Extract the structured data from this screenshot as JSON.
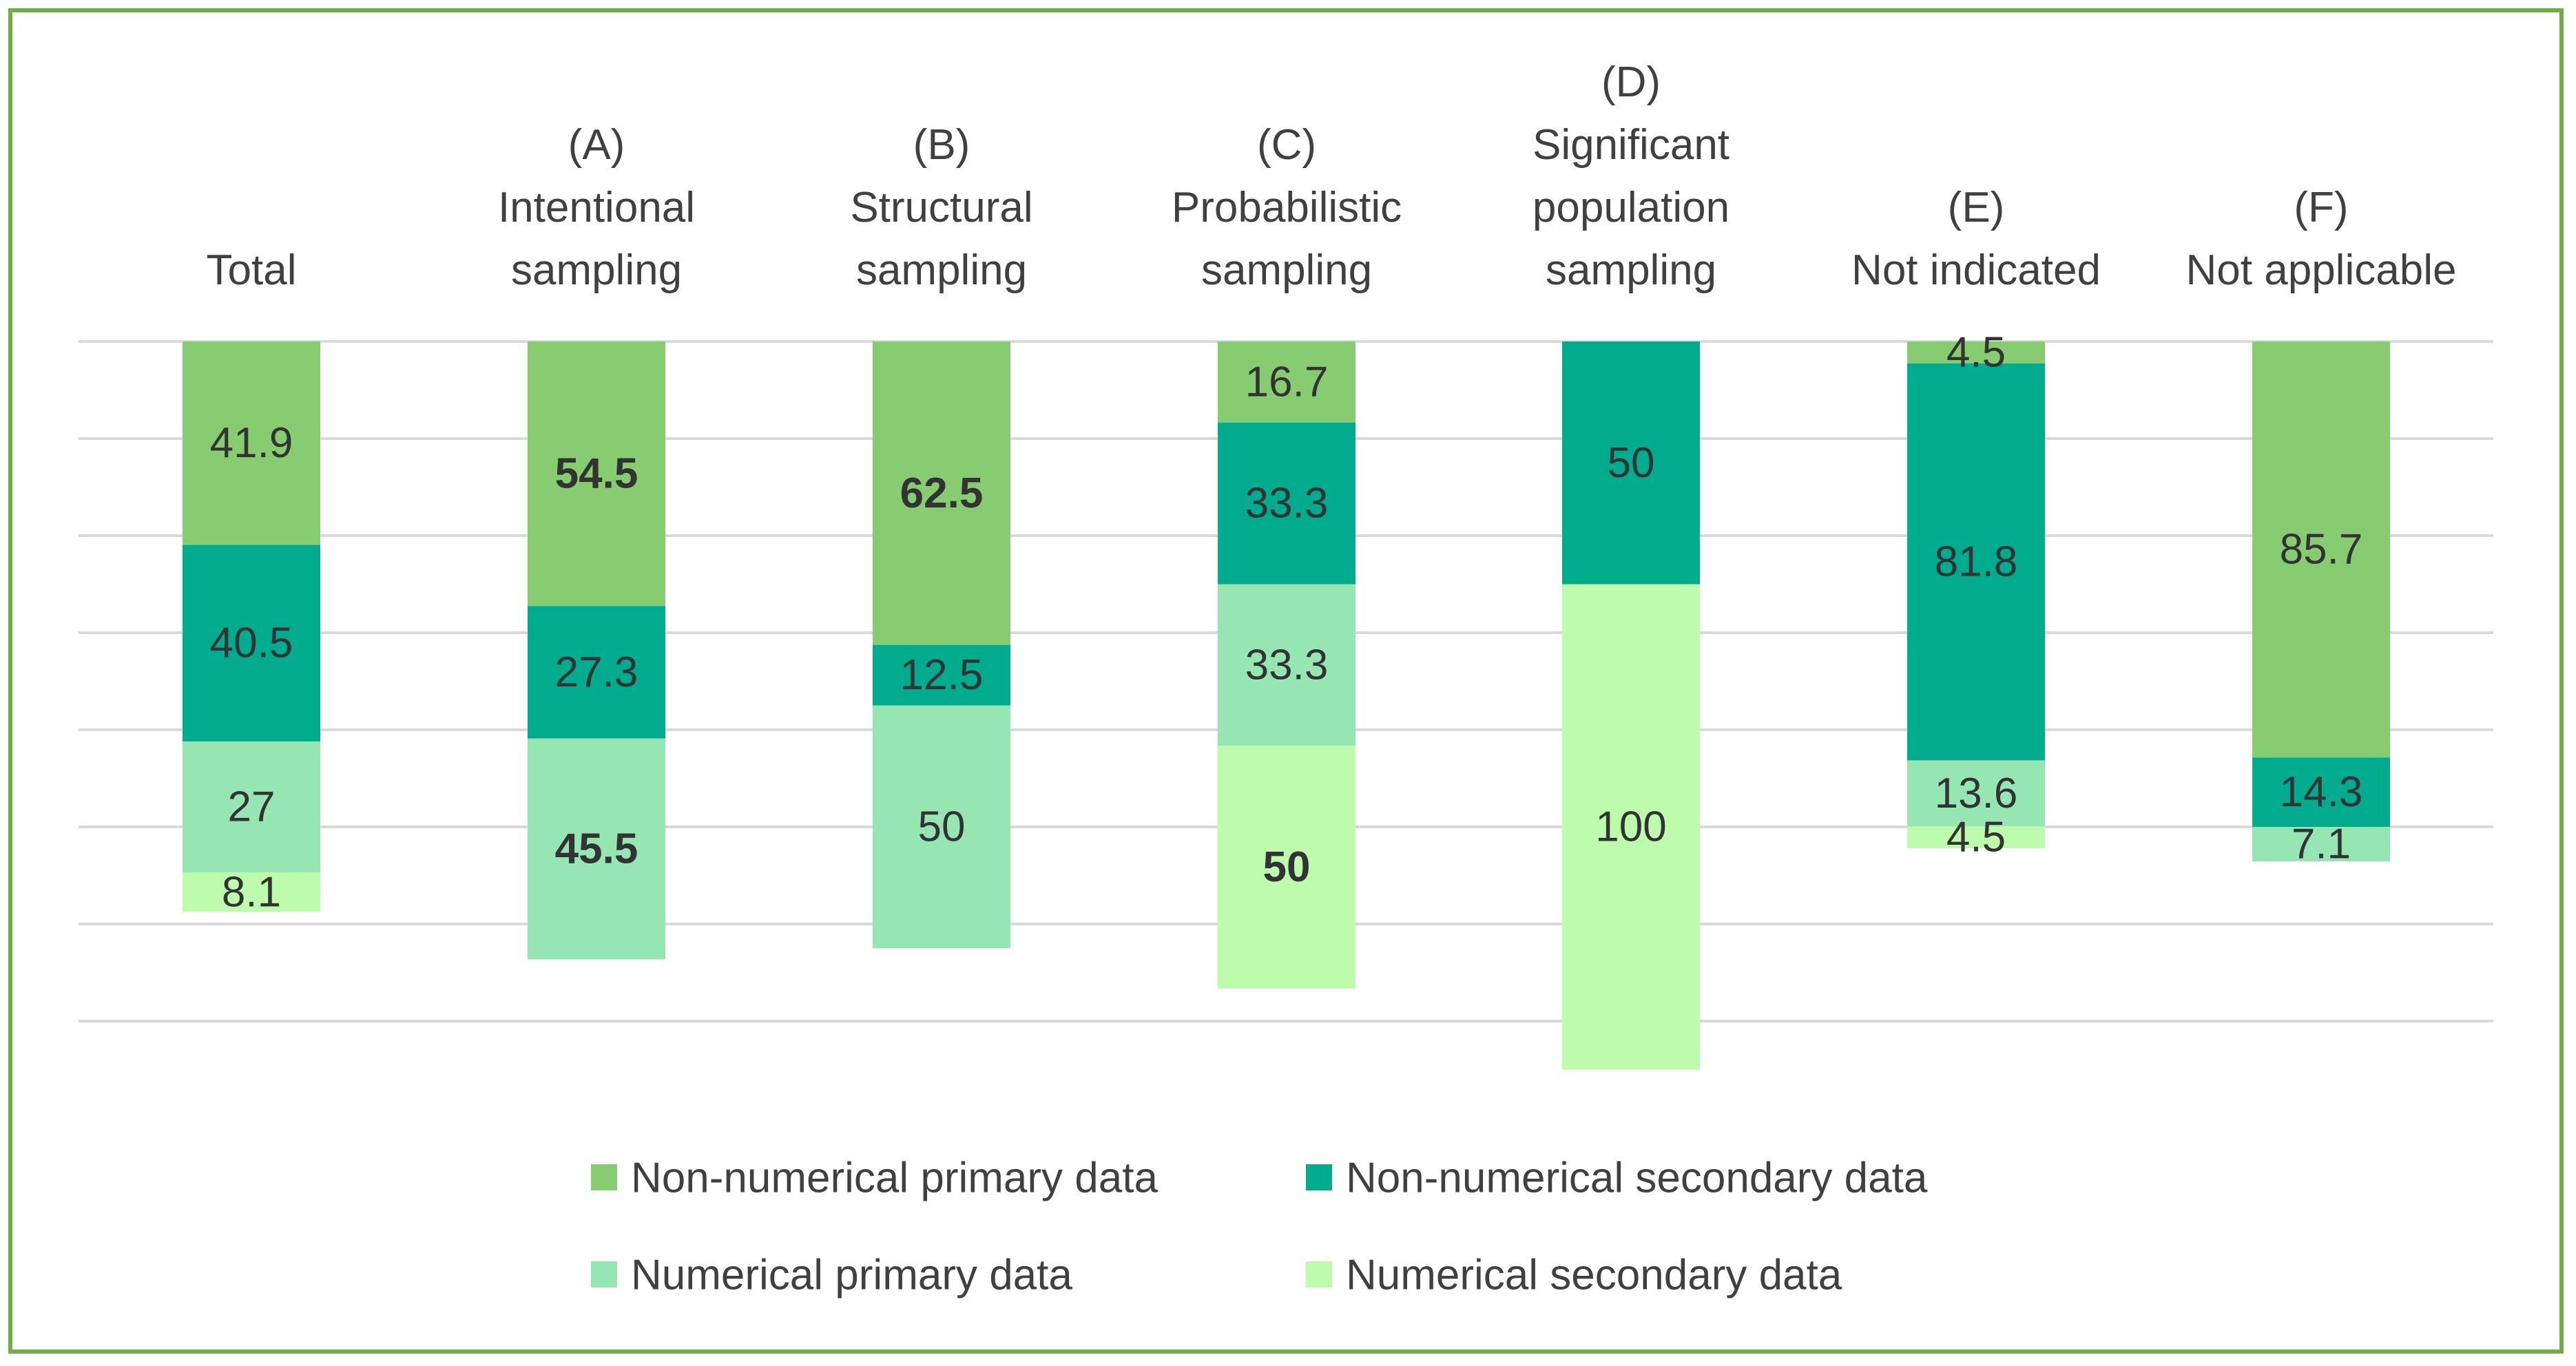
{
  "chart_data": {
    "type": "bar",
    "stacked": true,
    "orientation": "vertical",
    "direction": "downward",
    "title": "",
    "xlabel": "",
    "ylabel": "",
    "ylim": [
      0,
      150
    ],
    "grid": true,
    "legend_position": "bottom",
    "categories": [
      [
        "Total"
      ],
      [
        "(A)",
        "Intentional",
        "sampling"
      ],
      [
        "(B)",
        "Structural",
        "sampling"
      ],
      [
        "(C)",
        "Probabilistic",
        "sampling"
      ],
      [
        "(D)",
        "Significant",
        "population",
        "sampling"
      ],
      [
        "(E)",
        "Not indicated"
      ],
      [
        "(F)",
        "Not applicable"
      ]
    ],
    "series": [
      {
        "name": "Non-numerical primary data",
        "color": "#87cc70",
        "values": [
          41.9,
          54.5,
          62.5,
          16.7,
          null,
          4.5,
          85.7
        ],
        "labels": [
          "41.9",
          "54.5",
          "62.5",
          "16.7",
          "",
          "4.5",
          "85.7"
        ]
      },
      {
        "name": "Non-numerical secondary data",
        "color": "#00ab8e",
        "values": [
          40.5,
          27.3,
          12.5,
          33.3,
          50,
          81.8,
          14.3
        ],
        "labels": [
          "40.5",
          "27.3",
          "12.5",
          "33.3",
          "50",
          "81.8",
          "14.3"
        ]
      },
      {
        "name": "Numerical primary data",
        "color": "#96e6b3",
        "values": [
          27,
          45.5,
          50,
          33.3,
          null,
          13.6,
          7.1
        ],
        "labels": [
          "27",
          "45.5",
          "50",
          "33.3",
          "",
          "13.6",
          "7.1"
        ]
      },
      {
        "name": "Numerical secondary data",
        "color": "#bdfcad",
        "values": [
          8.1,
          null,
          null,
          50,
          100,
          4.5,
          null
        ],
        "labels": [
          "8.1",
          "",
          "",
          "50",
          "100",
          "4.5",
          ""
        ]
      }
    ],
    "highlighted_labels": [
      {
        "series": 0,
        "category": 1
      },
      {
        "series": 2,
        "category": 1
      },
      {
        "series": 0,
        "category": 2
      },
      {
        "series": 3,
        "category": 3
      }
    ],
    "highlight_color": "#ff0000",
    "label_color": "#333333",
    "gridline_color": "#d9d9d9",
    "frame_color": "#70ad47"
  }
}
